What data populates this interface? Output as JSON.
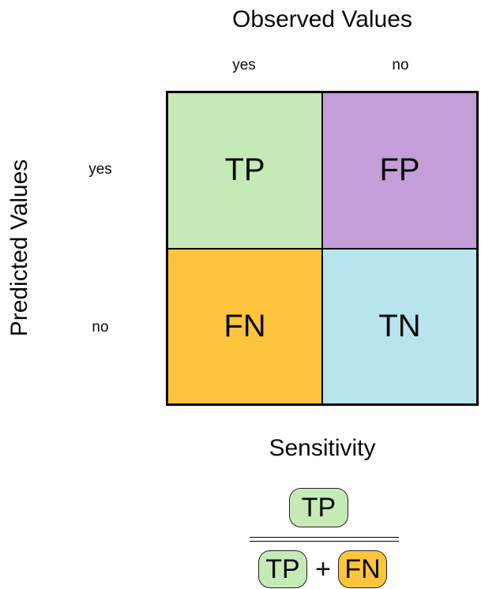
{
  "colors": {
    "tp_green": "#c6eab6",
    "fp_purple": "#c39ed8",
    "fn_orange": "#fec43d",
    "tn_blue": "#b8e4ee",
    "border": "#000000"
  },
  "matrix": {
    "title": "Observed Values",
    "row_axis_label": "Predicted Values",
    "col_labels": [
      "yes",
      "no"
    ],
    "row_labels": [
      "yes",
      "no"
    ],
    "cells": [
      {
        "label": "TP",
        "color": "#c6eab6"
      },
      {
        "label": "FP",
        "color": "#c39ed8"
      },
      {
        "label": "FN",
        "color": "#fec43d"
      },
      {
        "label": "TN",
        "color": "#b8e4ee"
      }
    ]
  },
  "formula": {
    "title": "Sensitivity",
    "numerator": {
      "label": "TP",
      "color": "#c6eab6"
    },
    "denominator": {
      "left": {
        "label": "TP",
        "color": "#c6eab6"
      },
      "operator": "+",
      "right": {
        "label": "FN",
        "color": "#fec43d"
      }
    }
  }
}
